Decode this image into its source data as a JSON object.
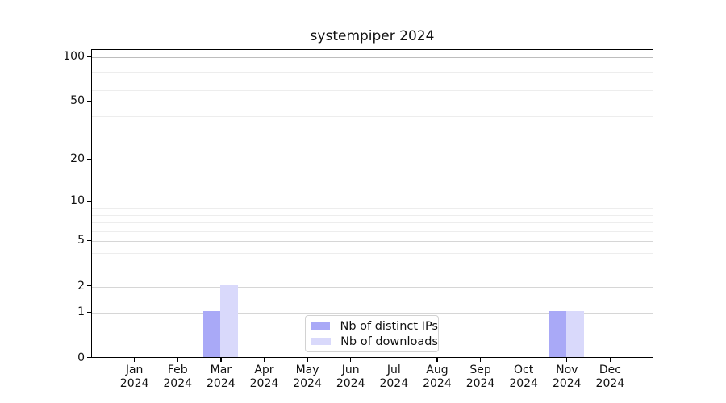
{
  "chart_data": {
    "type": "bar",
    "title": "systempiper 2024",
    "year_label": "2024",
    "categories": [
      "Jan",
      "Feb",
      "Mar",
      "Apr",
      "May",
      "Jun",
      "Jul",
      "Aug",
      "Sep",
      "Oct",
      "Nov",
      "Dec"
    ],
    "series": [
      {
        "name": "Nb of distinct IPs",
        "color": "#a9a9f7",
        "values": [
          0,
          0,
          1,
          0,
          0,
          0,
          0,
          0,
          0,
          0,
          1,
          0
        ]
      },
      {
        "name": "Nb of downloads",
        "color": "#d9d9fb",
        "values": [
          0,
          0,
          2,
          0,
          0,
          0,
          0,
          0,
          0,
          0,
          1,
          0
        ]
      }
    ],
    "xlabel": "",
    "ylabel": "",
    "y_scale": "log1p",
    "ylim": [
      0,
      100
    ],
    "y_major_ticks": [
      0,
      1,
      2,
      5,
      10,
      20,
      50,
      100
    ],
    "y_minor_gridlines": [
      3,
      4,
      6,
      7,
      8,
      9,
      30,
      40,
      60,
      70,
      80,
      90
    ],
    "grid": true,
    "legend_position": "lower center",
    "colors": {
      "major_grid": "#d6d6d6",
      "top_grid": "#bdbdbd",
      "minor_grid": "#ededed",
      "axis": "#000000",
      "background": "#ffffff"
    }
  }
}
